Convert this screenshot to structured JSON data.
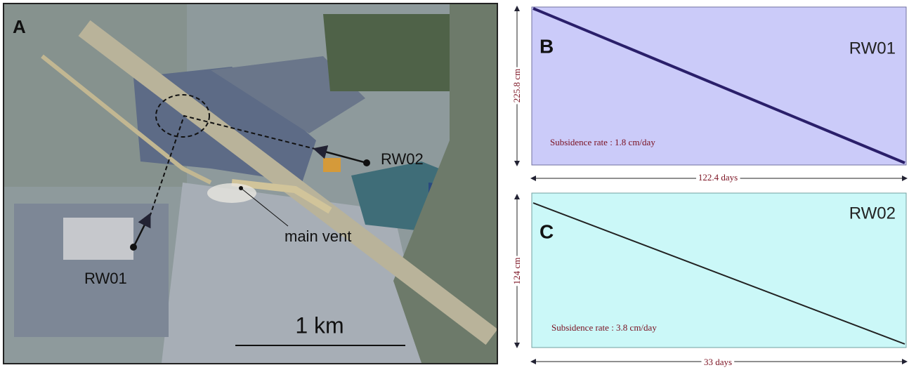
{
  "panel_a": {
    "letter": "A",
    "well_1": "RW01",
    "well_2": "RW02",
    "vent": "main vent",
    "scale": "1 km"
  },
  "panel_b": {
    "letter": "B",
    "well": "RW01",
    "height": "225.8 cm",
    "rate": "Subsidence rate : 1.8 cm/day",
    "duration": "122.4 days"
  },
  "panel_c": {
    "letter": "C",
    "well": "RW02",
    "height": "124 cm",
    "rate": "Subsidence rate : 3.8 cm/day",
    "duration": "33 days"
  }
}
